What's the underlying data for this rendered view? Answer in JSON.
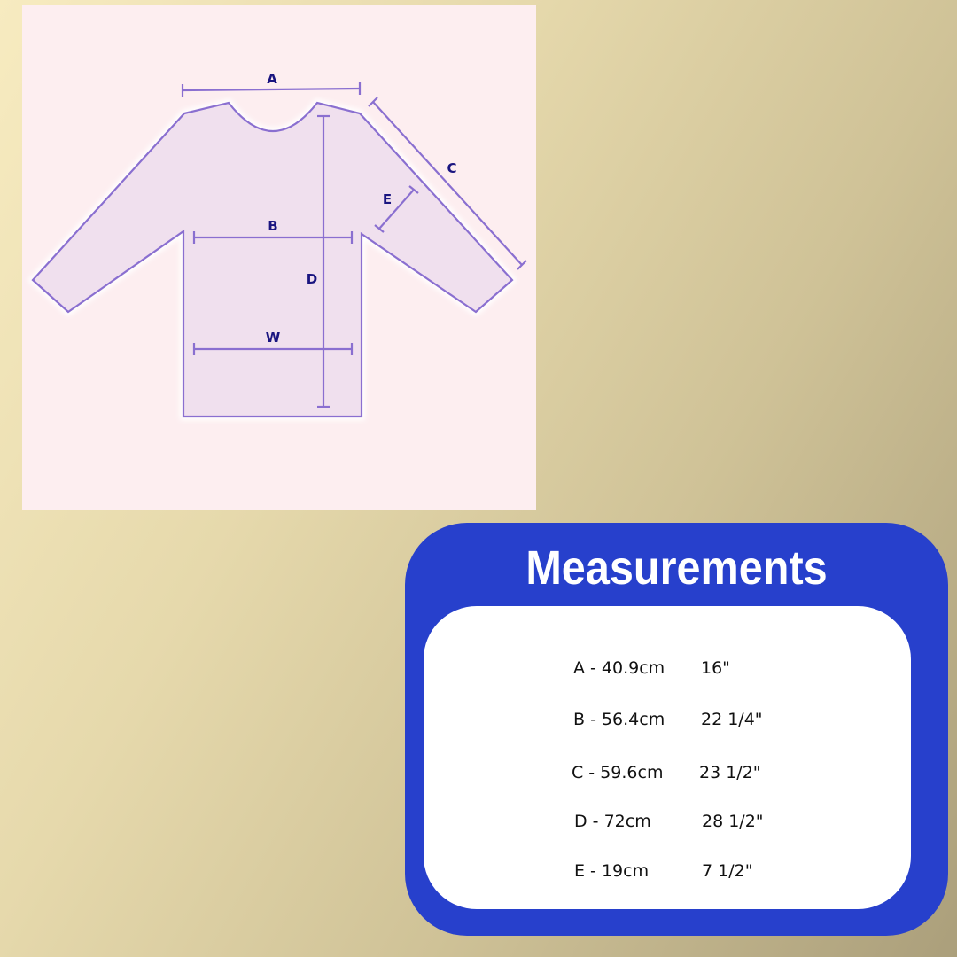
{
  "diagram": {
    "labels": {
      "a": "A",
      "b": "B",
      "c": "C",
      "d": "D",
      "e": "E",
      "w": "W"
    },
    "colors": {
      "outline": "#8a6fd0",
      "fill": "#f0e0ee",
      "label": "#1a1580",
      "panel": "#fdeef0"
    }
  },
  "card": {
    "title": "Measurements",
    "colors": {
      "card": "#2740cc",
      "inner": "#ffffff"
    },
    "rows": [
      {
        "cm": "A - 40.9cm",
        "inch": "16\""
      },
      {
        "cm": "B - 56.4cm",
        "inch": "22 1/4\""
      },
      {
        "cm": "C - 59.6cm",
        "inch": "23 1/2\""
      },
      {
        "cm": "D - 72cm",
        "inch": "28 1/2\""
      },
      {
        "cm": "E - 19cm",
        "inch": "7 1/2\""
      }
    ]
  }
}
